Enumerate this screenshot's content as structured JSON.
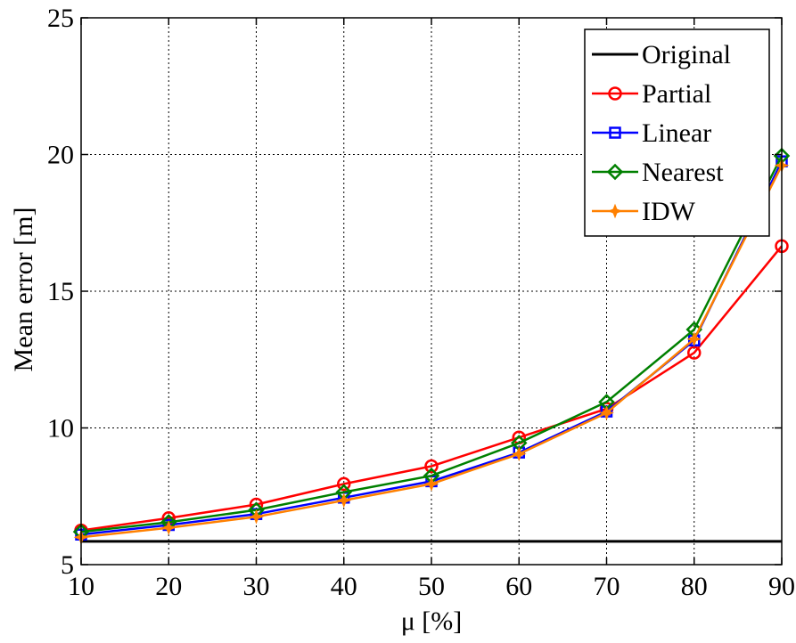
{
  "chart_data": {
    "type": "line",
    "title": "",
    "xlabel": "μ [%]",
    "ylabel": "Mean error [m]",
    "x": [
      10,
      20,
      30,
      40,
      50,
      60,
      70,
      80,
      90
    ],
    "xlim": [
      10,
      90
    ],
    "ylim": [
      5,
      25
    ],
    "x_ticks": [
      "10",
      "20",
      "30",
      "40",
      "50",
      "60",
      "70",
      "80",
      "90"
    ],
    "y_ticks": [
      "5",
      "10",
      "15",
      "20",
      "25"
    ],
    "grid": true,
    "grid_style": "dotted",
    "legend_position": "top-right",
    "series": [
      {
        "name": "Original",
        "color": "#000000",
        "marker": "none",
        "values": [
          5.85,
          5.85,
          5.85,
          5.85,
          5.85,
          5.85,
          5.85,
          5.85,
          5.85
        ]
      },
      {
        "name": "Partial",
        "color": "#ff0000",
        "marker": "circle",
        "values": [
          6.25,
          6.7,
          7.2,
          7.95,
          8.6,
          9.65,
          10.7,
          12.75,
          16.65
        ]
      },
      {
        "name": "Linear",
        "color": "#0000ff",
        "marker": "square",
        "values": [
          6.1,
          6.45,
          6.85,
          7.45,
          8.05,
          9.1,
          10.6,
          13.2,
          19.75
        ]
      },
      {
        "name": "Nearest",
        "color": "#008000",
        "marker": "diamond",
        "values": [
          6.2,
          6.55,
          7.0,
          7.65,
          8.25,
          9.45,
          10.95,
          13.6,
          19.95
        ]
      },
      {
        "name": "IDW",
        "color": "#ff8000",
        "marker": "star",
        "values": [
          6.0,
          6.35,
          6.75,
          7.35,
          7.95,
          9.05,
          10.55,
          13.25,
          19.6
        ]
      }
    ]
  }
}
